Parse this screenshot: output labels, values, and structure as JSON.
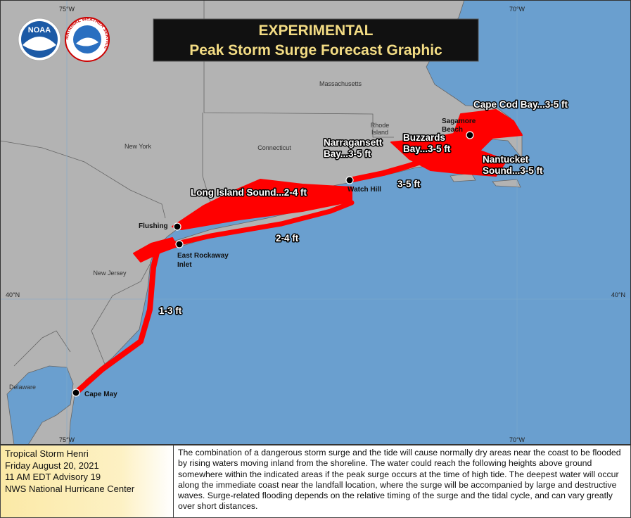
{
  "header": {
    "title": [
      "EXPERIMENTAL",
      "Peak Storm Surge Forecast Graphic"
    ],
    "logos": [
      "NOAA",
      "NATIONAL WEATHER SERVICE"
    ]
  },
  "graticule": {
    "top": [
      "75°W",
      "70°W"
    ],
    "bottom": [
      "75°W",
      "70°W"
    ],
    "left": "40°N",
    "right": "40°N"
  },
  "states": {
    "massachusetts": "Massachusetts",
    "rhode_island": [
      "Rhode",
      "Island"
    ],
    "connecticut": "Connecticut",
    "new_york": "New York",
    "new_jersey": "New Jersey",
    "delaware": "Delaware"
  },
  "places": {
    "sagamore_beach": [
      "Sagamore",
      "Beach"
    ],
    "flushing": "Flushing",
    "east_rockaway_inlet": [
      "East Rockaway",
      "Inlet"
    ],
    "watch_hill": "Watch Hill",
    "cape_may": "Cape May"
  },
  "surge_labels": {
    "cape_cod_bay": "Cape Cod Bay...3-5 ft",
    "narragansett_bay": [
      "Narragansett",
      "Bay...3-5 ft"
    ],
    "buzzards_bay": [
      "Buzzards",
      "Bay...3-5 ft"
    ],
    "nantucket_sound": [
      "Nantucket",
      "Sound...3-5 ft"
    ],
    "long_island_sound": "Long Island Sound...2-4 ft",
    "ri_coast": "3-5 ft",
    "li_coast": "2-4 ft",
    "nj_coast": "1-3 ft"
  },
  "footer": {
    "storm": [
      "Tropical Storm Henri",
      "Friday August 20, 2021",
      "11 AM EDT Advisory 19",
      "NWS National Hurricane Center"
    ],
    "description": "The combination of a dangerous storm surge and the tide will cause normally dry areas near the coast to be flooded by rising waters moving inland from the shoreline.  The water could reach the following heights above ground somewhere within the indicated areas if the peak surge occurs at the time of high tide.  The deepest water will occur along the immediate coast near the landfall location, where the surge will be accompanied by large and destructive waves.  Surge-related flooding depends on the relative timing of the surge and the tidal cycle, and can vary greatly over short distances."
  }
}
